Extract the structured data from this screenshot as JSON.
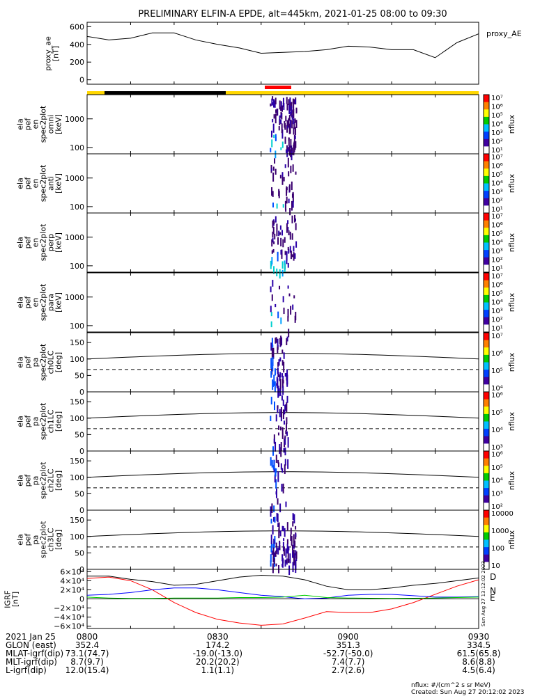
{
  "title": "PRELIMINARY ELFIN-A EPDE, alt=445km, 2021-01-25 08:00 to 09:30",
  "colors": {
    "day": "#ffd700",
    "night": "#000000",
    "science_zone": "#ff0000",
    "ae_line": "#000000",
    "D": "#ff0000",
    "N": "#0000ff",
    "E": "#00cc00",
    "total": "#000000"
  },
  "panels": {
    "ae": {
      "ylabel": [
        "proxy_ae",
        "[nT]"
      ],
      "legend": "proxy_AE",
      "ticks": [
        "600",
        "400",
        "200",
        "0"
      ]
    },
    "spec": [
      {
        "ylabel": [
          "ela",
          "pef",
          "en",
          "spec2plot",
          "omni",
          "[keV]"
        ],
        "ticks": [
          "1000",
          "100"
        ]
      },
      {
        "ylabel": [
          "ela",
          "pef",
          "en",
          "spec2plot",
          "anti",
          "[keV]"
        ],
        "ticks": [
          "1000",
          "100"
        ]
      },
      {
        "ylabel": [
          "ela",
          "pef",
          "en",
          "spec2plot",
          "perp",
          "[keV]"
        ],
        "ticks": [
          "1000",
          "100"
        ]
      },
      {
        "ylabel": [
          "ela",
          "pef",
          "en",
          "spec2plot",
          "para",
          "[keV]"
        ],
        "ticks": [
          "1000",
          "100"
        ]
      }
    ],
    "pa": [
      {
        "ylabel": [
          "ela",
          "pef",
          "pa",
          "spec2plot",
          "ch0LC",
          "[deg]"
        ],
        "ticks": [
          "150",
          "100",
          "50",
          "0"
        ]
      },
      {
        "ylabel": [
          "ela",
          "pef",
          "pa",
          "spec2plot",
          "ch1LC",
          "[deg]"
        ],
        "ticks": [
          "150",
          "100",
          "50",
          "0"
        ]
      },
      {
        "ylabel": [
          "ela",
          "pef",
          "pa",
          "spec2plot",
          "ch2LC",
          "[deg]"
        ],
        "ticks": [
          "150",
          "100",
          "50",
          "0"
        ]
      },
      {
        "ylabel": [
          "ela",
          "pef",
          "pa",
          "spec2plot",
          "ch3LC",
          "[deg]"
        ],
        "ticks": [
          "150",
          "100",
          "50",
          "0"
        ]
      }
    ],
    "igrf": {
      "ylabel": [
        "IGRF",
        "[nT]"
      ],
      "ticks": [
        "6×10⁴",
        "4×10⁴",
        "2×10⁴",
        "0",
        "−2×10⁴",
        "−4×10⁴",
        "−6×10⁴"
      ],
      "legend": [
        "D",
        "N",
        "E"
      ],
      "stamp": "Sun Aug 27 13:12:02 2023"
    }
  },
  "colorbars": [
    {
      "label": "nflux",
      "ticks": [
        "10⁷",
        "10⁶",
        "10⁵",
        "10⁴",
        "10³",
        "10²",
        "10¹"
      ]
    },
    {
      "label": "nflux",
      "ticks": [
        "10⁷",
        "10⁶",
        "10⁵",
        "10⁴",
        "10³",
        "10²",
        "10¹"
      ]
    },
    {
      "label": "nflux",
      "ticks": [
        "10⁷",
        "10⁶",
        "10⁵",
        "10⁴",
        "10³",
        "10²",
        "10¹"
      ]
    },
    {
      "label": "nflux",
      "ticks": [
        "10⁷",
        "10⁶",
        "10⁵",
        "10⁴",
        "10³",
        "10²",
        "10¹"
      ]
    },
    {
      "label": "nflux",
      "ticks": [
        "10⁷",
        "10⁶",
        "10⁵",
        "10⁴"
      ]
    },
    {
      "label": "nflux",
      "ticks": [
        "10⁶",
        "10⁵",
        "10⁴",
        "10³"
      ]
    },
    {
      "label": "nflux",
      "ticks": [
        "10⁶",
        "10⁵",
        "10⁴",
        "10³",
        "10²"
      ]
    },
    {
      "label": "nflux",
      "ticks": [
        "10000",
        "1000",
        "100",
        "10"
      ]
    }
  ],
  "footer": {
    "rows": [
      {
        "label": "2021 Jan 25",
        "values": [
          "0800",
          "0830",
          "0900",
          "0930"
        ]
      },
      {
        "label": "GLON (east)",
        "values": [
          "352.4",
          "174.2",
          "351.3",
          "334.5"
        ]
      },
      {
        "label": "MLAT-igrf(dip)",
        "values": [
          "73.1(74.7)",
          "-19.0(-13.0)",
          "-52.7(-50.0)",
          "61.5(65.8)"
        ]
      },
      {
        "label": "MLT-igrf(dip)",
        "values": [
          "8.7(9.7)",
          "20.2(20.2)",
          "7.4(7.7)",
          "8.6(8.8)"
        ]
      },
      {
        "label": "L-igrf(dip)",
        "values": [
          "12.0(15.4)",
          "1.1(1.1)",
          "2.7(2.6)",
          "4.5(6.4)"
        ]
      }
    ],
    "units_note": "nflux: #/(cm^2 s sr MeV)",
    "created": "Created: Sun Aug 27 20:12:02 2023"
  },
  "chart_data": [
    {
      "type": "line",
      "title": "PRELIMINARY ELFIN-A EPDE, alt=445km, 2021-01-25 08:00 to 09:30",
      "ylabel": "proxy_ae [nT]",
      "ylim": [
        -50,
        650
      ],
      "x": [
        "08:00",
        "08:05",
        "08:10",
        "08:15",
        "08:20",
        "08:25",
        "08:30",
        "08:35",
        "08:40",
        "08:45",
        "08:50",
        "08:55",
        "09:00",
        "09:05",
        "09:10",
        "09:15",
        "09:20",
        "09:25",
        "09:30"
      ],
      "series": [
        {
          "name": "proxy_AE",
          "values": [
            490,
            450,
            470,
            530,
            530,
            450,
            400,
            360,
            300,
            310,
            320,
            340,
            380,
            370,
            340,
            340,
            250,
            420,
            520
          ]
        }
      ]
    },
    {
      "type": "line",
      "ylabel": "IGRF [nT]",
      "ylim": [
        -65000,
        65000
      ],
      "x": [
        "08:00",
        "08:05",
        "08:10",
        "08:15",
        "08:20",
        "08:25",
        "08:30",
        "08:35",
        "08:40",
        "08:45",
        "08:50",
        "08:55",
        "09:00",
        "09:05",
        "09:10",
        "09:15",
        "09:20",
        "09:25",
        "09:30"
      ],
      "series": [
        {
          "name": "D",
          "values": [
            45000,
            48000,
            40000,
            20000,
            -8000,
            -30000,
            -45000,
            -53000,
            -58000,
            -55000,
            -42000,
            -28000,
            -30000,
            -30000,
            -22000,
            -8000,
            10000,
            28000,
            42000
          ]
        },
        {
          "name": "N",
          "values": [
            8000,
            10000,
            14000,
            20000,
            24000,
            24000,
            20000,
            14000,
            8000,
            5000,
            0,
            2000,
            8000,
            10000,
            10000,
            7000,
            4000,
            4000,
            5000
          ]
        },
        {
          "name": "E",
          "values": [
            4000,
            2000,
            1000,
            1000,
            2000,
            2000,
            2000,
            3000,
            3000,
            4000,
            8000,
            3000,
            2000,
            1500,
            1000,
            1500,
            2000,
            3000,
            4000
          ]
        },
        {
          "values": [
            50000,
            50000,
            43000,
            38000,
            30000,
            32000,
            40000,
            48000,
            52000,
            50000,
            42000,
            28000,
            20000,
            20000,
            24000,
            30000,
            34000,
            40000,
            46000
          ]
        }
      ]
    },
    {
      "type": "heatmap",
      "ylabel": "ela pef en spec2plot [keV]",
      "activity_window": [
        "08:42",
        "08:48"
      ],
      "science_zone": [
        "08:42",
        "08:47"
      ],
      "pitch_angle_reference_lines": {
        "solid": 100,
        "dashed": 68
      }
    }
  ]
}
